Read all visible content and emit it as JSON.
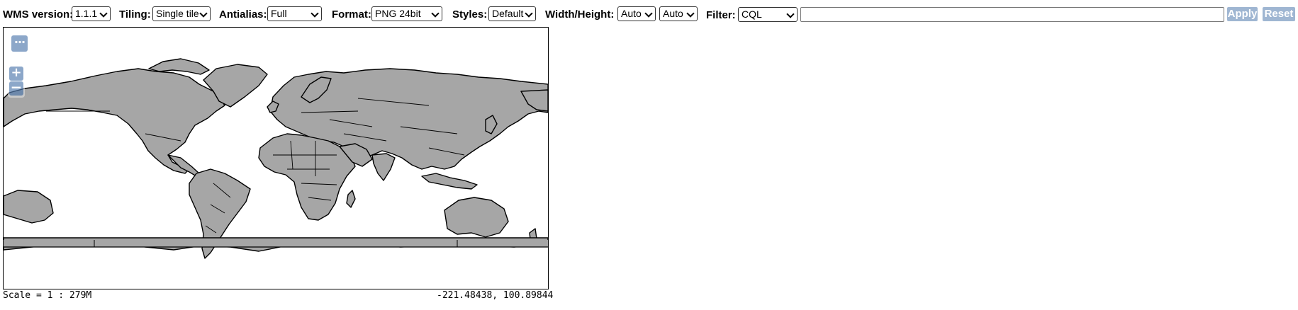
{
  "toolbar": {
    "wms_version": {
      "label": "WMS version:",
      "value": "1.1.1"
    },
    "tiling": {
      "label": "Tiling:",
      "value": "Single tile"
    },
    "antialias": {
      "label": "Antialias:",
      "value": "Full"
    },
    "format": {
      "label": "Format:",
      "value": "PNG 24bit"
    },
    "styles": {
      "label": "Styles:",
      "value": "Default"
    },
    "size": {
      "label": "Width/Height:",
      "width_value": "Auto",
      "height_value": "Auto"
    },
    "filter": {
      "label": "Filter:",
      "type_value": "CQL",
      "expression": ""
    },
    "apply_label": "Apply",
    "reset_label": "Reset"
  },
  "map": {
    "controls": {
      "layer_switcher": "···",
      "zoom_in": "+",
      "zoom_out": "−"
    },
    "land_color": "#a6a6a6",
    "border_color": "#000000",
    "ocean_color": "#ffffff"
  },
  "status": {
    "scale": "Scale = 1 : 279M",
    "coordinates": "-221.48438, 100.89844"
  }
}
